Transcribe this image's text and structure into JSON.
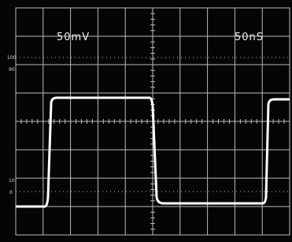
{
  "screen": {
    "vertical_scale": "50mV",
    "horizontal_scale": "50nS",
    "markers": [
      "100",
      "90",
      "10",
      "0"
    ]
  }
}
